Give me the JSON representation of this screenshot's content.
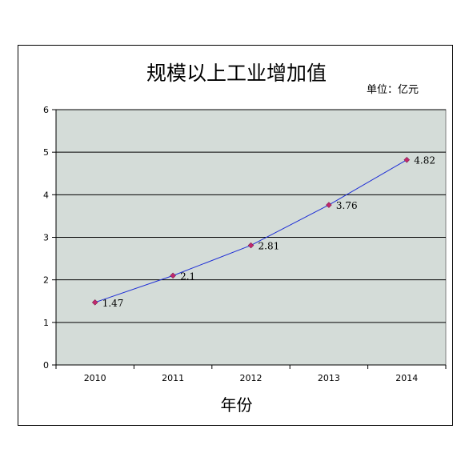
{
  "chart_data": {
    "type": "line",
    "title": "规模以上工业增加值",
    "unit_note": "单位：亿元",
    "xlabel": "年份",
    "ylabel": "",
    "categories": [
      "2010",
      "2011",
      "2012",
      "2013",
      "2014"
    ],
    "series": [
      {
        "values": [
          1.47,
          2.1,
          2.81,
          3.76,
          4.82
        ]
      }
    ],
    "data_labels": [
      "1.47",
      "2.1",
      "2.81",
      "3.76",
      "4.82"
    ],
    "ylim": [
      0,
      6
    ],
    "yticks": [
      "0",
      "1",
      "2",
      "3",
      "4",
      "5",
      "6"
    ],
    "grid": true,
    "plot_background": "#d4dcd8",
    "line_color": "#1f2fd6",
    "marker_color": "#c0286e"
  }
}
